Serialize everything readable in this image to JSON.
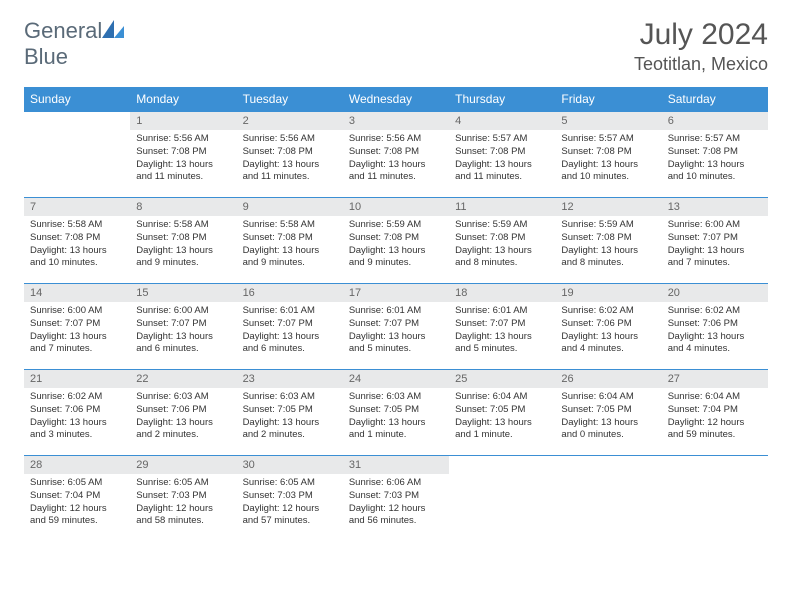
{
  "logo": {
    "text_general": "General",
    "text_blue": "Blue"
  },
  "title": "July 2024",
  "location": "Teotitlan, Mexico",
  "colors": {
    "header_blue": "#3b8fd4",
    "logo_gray": "#5a6a78",
    "logo_blue": "#3b7fc4",
    "border_blue": "#3b8fd4",
    "daynum_bg": "#e8e9ea"
  },
  "weekdays": [
    "Sunday",
    "Monday",
    "Tuesday",
    "Wednesday",
    "Thursday",
    "Friday",
    "Saturday"
  ],
  "weeks": [
    [
      null,
      {
        "n": "1",
        "sr": "5:56 AM",
        "ss": "7:08 PM",
        "dl": "13 hours and 11 minutes."
      },
      {
        "n": "2",
        "sr": "5:56 AM",
        "ss": "7:08 PM",
        "dl": "13 hours and 11 minutes."
      },
      {
        "n": "3",
        "sr": "5:56 AM",
        "ss": "7:08 PM",
        "dl": "13 hours and 11 minutes."
      },
      {
        "n": "4",
        "sr": "5:57 AM",
        "ss": "7:08 PM",
        "dl": "13 hours and 11 minutes."
      },
      {
        "n": "5",
        "sr": "5:57 AM",
        "ss": "7:08 PM",
        "dl": "13 hours and 10 minutes."
      },
      {
        "n": "6",
        "sr": "5:57 AM",
        "ss": "7:08 PM",
        "dl": "13 hours and 10 minutes."
      }
    ],
    [
      {
        "n": "7",
        "sr": "5:58 AM",
        "ss": "7:08 PM",
        "dl": "13 hours and 10 minutes."
      },
      {
        "n": "8",
        "sr": "5:58 AM",
        "ss": "7:08 PM",
        "dl": "13 hours and 9 minutes."
      },
      {
        "n": "9",
        "sr": "5:58 AM",
        "ss": "7:08 PM",
        "dl": "13 hours and 9 minutes."
      },
      {
        "n": "10",
        "sr": "5:59 AM",
        "ss": "7:08 PM",
        "dl": "13 hours and 9 minutes."
      },
      {
        "n": "11",
        "sr": "5:59 AM",
        "ss": "7:08 PM",
        "dl": "13 hours and 8 minutes."
      },
      {
        "n": "12",
        "sr": "5:59 AM",
        "ss": "7:08 PM",
        "dl": "13 hours and 8 minutes."
      },
      {
        "n": "13",
        "sr": "6:00 AM",
        "ss": "7:07 PM",
        "dl": "13 hours and 7 minutes."
      }
    ],
    [
      {
        "n": "14",
        "sr": "6:00 AM",
        "ss": "7:07 PM",
        "dl": "13 hours and 7 minutes."
      },
      {
        "n": "15",
        "sr": "6:00 AM",
        "ss": "7:07 PM",
        "dl": "13 hours and 6 minutes."
      },
      {
        "n": "16",
        "sr": "6:01 AM",
        "ss": "7:07 PM",
        "dl": "13 hours and 6 minutes."
      },
      {
        "n": "17",
        "sr": "6:01 AM",
        "ss": "7:07 PM",
        "dl": "13 hours and 5 minutes."
      },
      {
        "n": "18",
        "sr": "6:01 AM",
        "ss": "7:07 PM",
        "dl": "13 hours and 5 minutes."
      },
      {
        "n": "19",
        "sr": "6:02 AM",
        "ss": "7:06 PM",
        "dl": "13 hours and 4 minutes."
      },
      {
        "n": "20",
        "sr": "6:02 AM",
        "ss": "7:06 PM",
        "dl": "13 hours and 4 minutes."
      }
    ],
    [
      {
        "n": "21",
        "sr": "6:02 AM",
        "ss": "7:06 PM",
        "dl": "13 hours and 3 minutes."
      },
      {
        "n": "22",
        "sr": "6:03 AM",
        "ss": "7:06 PM",
        "dl": "13 hours and 2 minutes."
      },
      {
        "n": "23",
        "sr": "6:03 AM",
        "ss": "7:05 PM",
        "dl": "13 hours and 2 minutes."
      },
      {
        "n": "24",
        "sr": "6:03 AM",
        "ss": "7:05 PM",
        "dl": "13 hours and 1 minute."
      },
      {
        "n": "25",
        "sr": "6:04 AM",
        "ss": "7:05 PM",
        "dl": "13 hours and 1 minute."
      },
      {
        "n": "26",
        "sr": "6:04 AM",
        "ss": "7:05 PM",
        "dl": "13 hours and 0 minutes."
      },
      {
        "n": "27",
        "sr": "6:04 AM",
        "ss": "7:04 PM",
        "dl": "12 hours and 59 minutes."
      }
    ],
    [
      {
        "n": "28",
        "sr": "6:05 AM",
        "ss": "7:04 PM",
        "dl": "12 hours and 59 minutes."
      },
      {
        "n": "29",
        "sr": "6:05 AM",
        "ss": "7:03 PM",
        "dl": "12 hours and 58 minutes."
      },
      {
        "n": "30",
        "sr": "6:05 AM",
        "ss": "7:03 PM",
        "dl": "12 hours and 57 minutes."
      },
      {
        "n": "31",
        "sr": "6:06 AM",
        "ss": "7:03 PM",
        "dl": "12 hours and 56 minutes."
      },
      null,
      null,
      null
    ]
  ]
}
